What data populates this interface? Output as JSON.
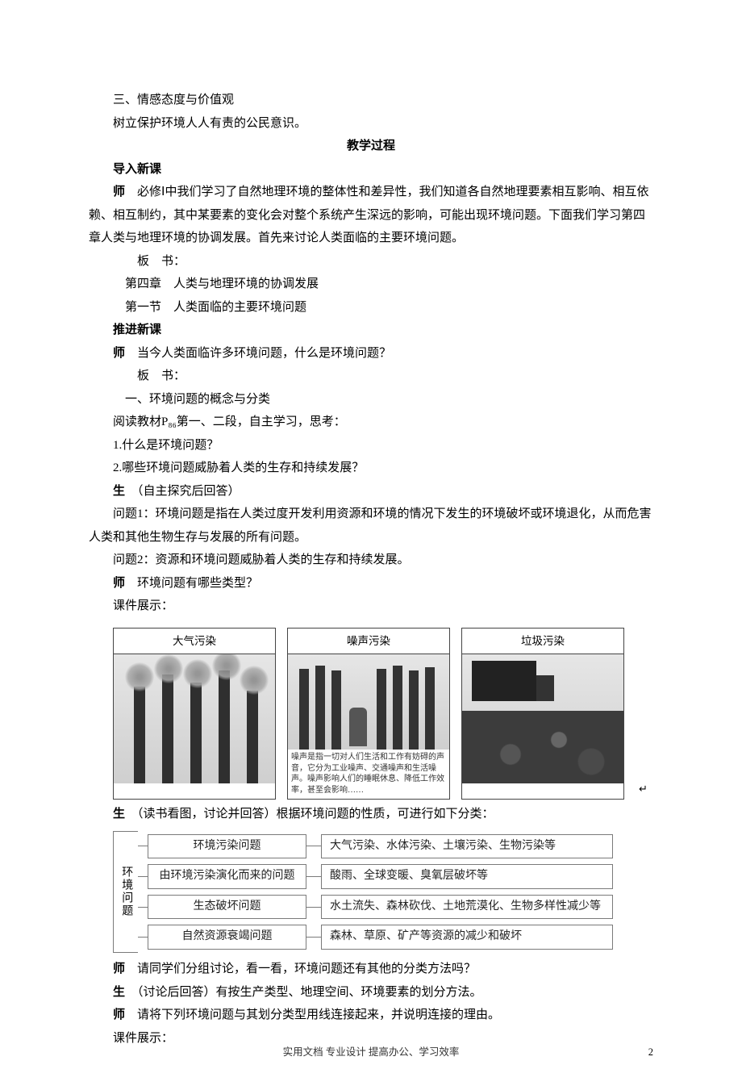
{
  "section3": {
    "title": "三、情感态度与价值观",
    "line": "树立保护环境人人有责的公民意识。"
  },
  "proc_heading": "教学过程",
  "intro": {
    "label": "导入新课",
    "teacher_prefix": "师",
    "teacher_text": "必修Ⅰ中我们学习了自然地理环境的整体性和差异性，我们知道各自然地理要素相互影响、相互依赖、相互制约，其中某要素的变化会对整个系统产生深远的影响，可能出现环境问题。下面我们学习第四章人类与地理环境的协调发展。首先来讨论人类面临的主要环境问题。",
    "board_label": "板　书：",
    "board1": "第四章　人类与地理环境的协调发展",
    "board2": "第一节　人类面临的主要环境问题"
  },
  "push": {
    "label": "推进新课",
    "t1_prefix": "师",
    "t1_text": "当今人类面临许多环境问题，什么是环境问题？",
    "board_label": "板　书：",
    "board1": "一、环境问题的概念与分类",
    "read": "阅读教材P₈₆第一、二段，自主学习，思考：",
    "q1": "1.什么是环境问题？",
    "q2": "2.哪些环境问题威胁着人类的生存和持续发展？",
    "s_prefix": "生",
    "s_note": "（自主探究后回答）",
    "a1": "问题1：环境问题是指在人类过度开发利用资源和环境的情况下发生的环境破坏或环境退化，从而危害人类和其他生物生存与发展的所有问题。",
    "a2": "问题2：资源和环境问题威胁着人类的生存和持续发展。",
    "t2_prefix": "师",
    "t2_text": "环境问题有哪些类型？",
    "slide_label": "课件展示："
  },
  "photos": {
    "p1_title": "大气污染",
    "p2_title": "噪声污染",
    "p3_title": "垃圾污染",
    "p2_caption": "噪声是指一切对人们生活和工作有妨碍的声音，它分为工业噪声、交通噪声和生活噪声。噪声影响人们的睡眠休息、降低工作效率，甚至会影响……",
    "arrow": "↵"
  },
  "after_photos": {
    "s_prefix": "生",
    "s_text": "（读书看图，讨论并回答）根据环境问题的性质，可进行如下分类："
  },
  "tree": {
    "root": "环境问题",
    "rows": [
      {
        "l": "环境污染问题",
        "r": "大气污染、水体污染、土壤污染、生物污染等"
      },
      {
        "l": "由环境污染演化而来的问题",
        "r": "酸雨、全球变暖、臭氧层破坏等"
      },
      {
        "l": "生态破坏问题",
        "r": "水土流失、森林砍伐、土地荒漠化、生物多样性减少等"
      },
      {
        "l": "自然资源衰竭问题",
        "r": "森林、草原、矿产等资源的减少和破坏"
      }
    ]
  },
  "tail": {
    "t1_prefix": "师",
    "t1_text": "请同学们分组讨论，看一看，环境问题还有其他的分类方法吗？",
    "s_prefix": "生",
    "s_text": "（讨论后回答）有按生产类型、地理空间、环境要素的划分方法。",
    "t2_prefix": "师",
    "t2_text": "请将下列环境问题与其划分类型用线连接起来，并说明连接的理由。",
    "slide_label": "课件展示："
  },
  "footer": "实用文档 专业设计 提高办公、学习效率",
  "page_number": "2"
}
